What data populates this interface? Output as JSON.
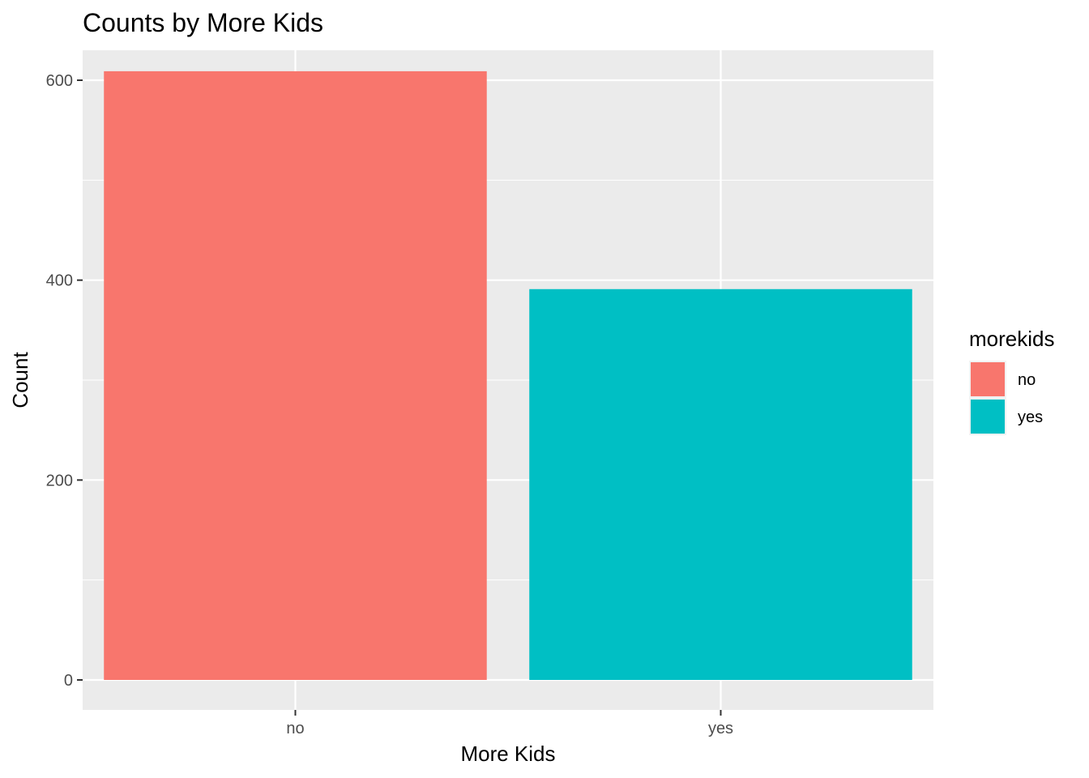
{
  "chart_data": {
    "type": "bar",
    "title": "Counts by More Kids",
    "xlabel": "More Kids",
    "ylabel": "Count",
    "categories": [
      "no",
      "yes"
    ],
    "values": [
      609,
      391
    ],
    "colors": [
      "#F8766D",
      "#00BFC4"
    ],
    "ylim": [
      -30,
      630
    ],
    "yticks": [
      0,
      200,
      400,
      600
    ],
    "ytick_labels": [
      "0",
      "200",
      "400",
      "600"
    ],
    "grid": true,
    "panel_background": "#EBEBEB",
    "legend": {
      "title": "morekids",
      "position": "right",
      "entries": [
        "no",
        "yes"
      ]
    }
  }
}
